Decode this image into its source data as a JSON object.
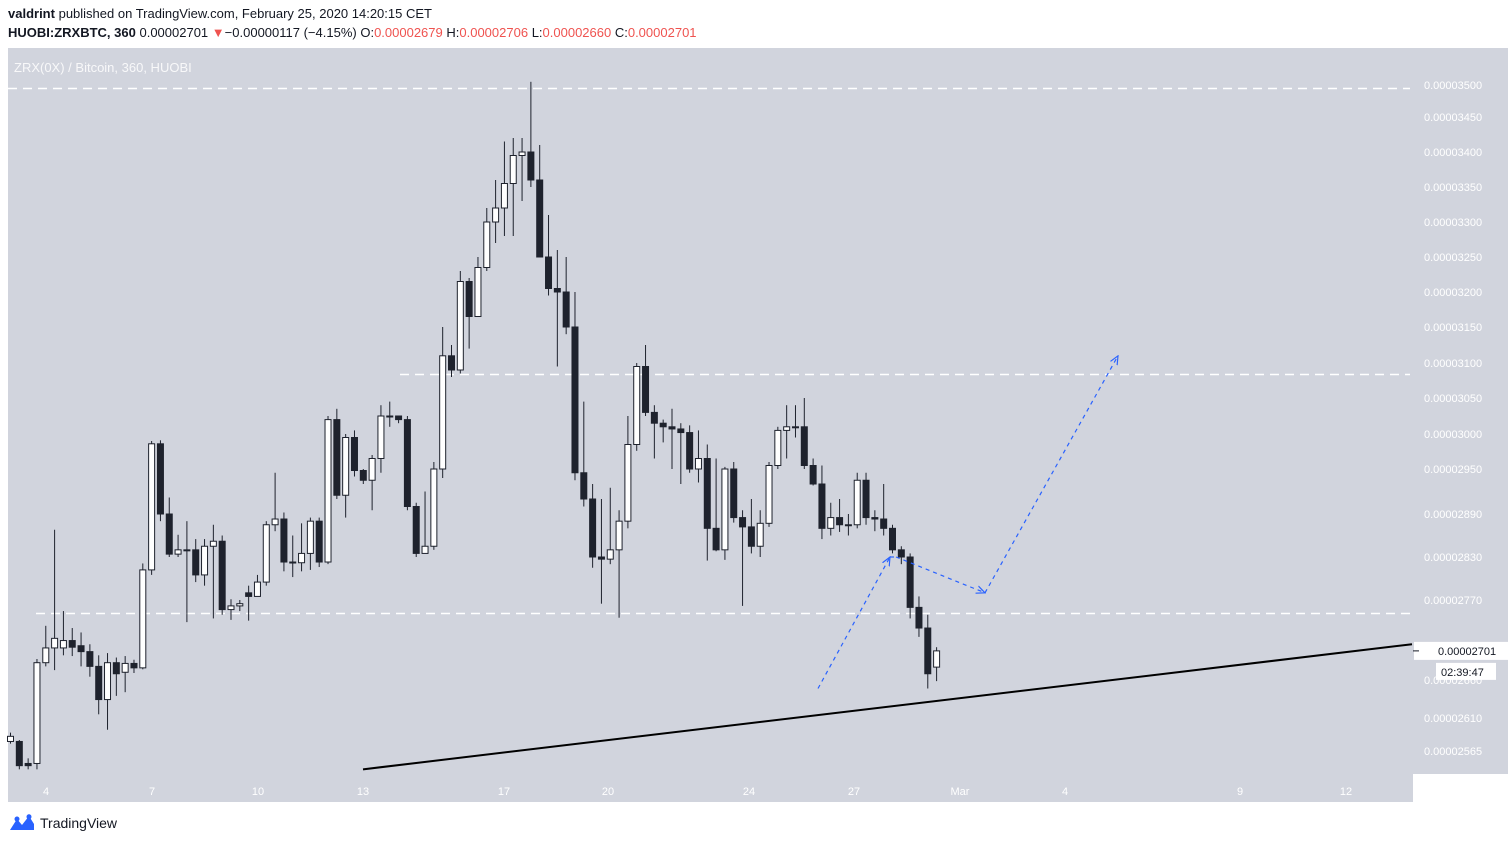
{
  "header": {
    "author": "valdrint",
    "published_text": "published on TradingView.com, February 25, 2020 14:20:15 CET",
    "symbol": "HUOBI:ZRXBTC, 360",
    "last": "0.00002701",
    "arrow": "▼",
    "change": "−0.00000117 (−4.15%)",
    "open_label": "O:",
    "open": "0.00002679",
    "high_label": "H:",
    "high": "0.00002706",
    "low_label": "L:",
    "low": "0.00002660",
    "close_label": "C:",
    "close": "0.00002701"
  },
  "watermark": "ZRX(0X) / Bitcoin, 360, HUOBI",
  "branding": {
    "name": "TradingView",
    "icon": "tradingview-logo-icon"
  },
  "colors": {
    "plot_bg": "#d1d4dd",
    "up_body": "#ffffff",
    "down_body": "#1e222d",
    "wick": "#1e222d",
    "dashed_level": "#ffffff",
    "projection": "#2962ff",
    "trendline": "#000000",
    "axis_text": "#ffffff",
    "price_label_bg": "#ffffff"
  },
  "chart_data": {
    "type": "candlestick",
    "title": "ZRX(0X) / Bitcoin, 360, HUOBI",
    "x_ticks": [
      "4",
      "7",
      "10",
      "13",
      "17",
      "20",
      "24",
      "27",
      "Mar",
      "4",
      "9",
      "12"
    ],
    "y_ticks": [
      "0.00003500",
      "0.00003450",
      "0.00003400",
      "0.00003350",
      "0.00003300",
      "0.00003250",
      "0.00003200",
      "0.00003150",
      "0.00003100",
      "0.00003050",
      "0.00003000",
      "0.00002950",
      "0.00002890",
      "0.00002830",
      "0.00002770",
      "0.00002610",
      "0.00002565"
    ],
    "ylim": [
      2.54e-05,
      3.53e-05
    ],
    "current_price_label": "0.00002701",
    "countdown_label": "02:39:47",
    "hidden_price_label": "0.00002660",
    "candles": [
      [
        2.578e-05,
        2.585e-05,
        2.59e-05,
        2.575e-05
      ],
      [
        2.578e-05,
        2.545e-05,
        2.58e-05,
        2.54e-05
      ],
      [
        2.548e-05,
        2.545e-05,
        2.555e-05,
        2.54e-05
      ],
      [
        2.548e-05,
        2.685e-05,
        2.69e-05,
        2.54e-05
      ],
      [
        2.685e-05,
        2.705e-05,
        2.735e-05,
        2.68e-05
      ],
      [
        2.705e-05,
        2.718e-05,
        2.868e-05,
        2.675e-05
      ],
      [
        2.705e-05,
        2.715e-05,
        2.755e-05,
        2.695e-05
      ],
      [
        2.715e-05,
        2.706e-05,
        2.732e-05,
        2.694e-05
      ],
      [
        2.708e-05,
        2.7e-05,
        2.726e-05,
        2.68e-05
      ],
      [
        2.7e-05,
        2.68e-05,
        2.71e-05,
        2.666e-05
      ],
      [
        2.68e-05,
        2.635e-05,
        2.695e-05,
        2.615e-05
      ],
      [
        2.635e-05,
        2.685e-05,
        2.698e-05,
        2.594e-05
      ],
      [
        2.685e-05,
        2.67e-05,
        2.692e-05,
        2.64e-05
      ],
      [
        2.672e-05,
        2.684e-05,
        2.694e-05,
        2.645e-05
      ],
      [
        2.684e-05,
        2.678e-05,
        2.689e-05,
        2.671e-05
      ],
      [
        2.678e-05,
        2.812e-05,
        2.821e-05,
        2.676e-05
      ],
      [
        2.812e-05,
        2.986e-05,
        2.99e-05,
        2.805e-05
      ],
      [
        2.986e-05,
        2.89e-05,
        2.991e-05,
        2.88e-05
      ],
      [
        2.89e-05,
        2.834e-05,
        2.912e-05,
        2.83e-05
      ],
      [
        2.834e-05,
        2.84e-05,
        2.861e-05,
        2.83e-05
      ],
      [
        2.84e-05,
        2.84e-05,
        2.88e-05,
        2.74e-05
      ],
      [
        2.84e-05,
        2.805e-05,
        2.855e-05,
        2.795e-05
      ],
      [
        2.805e-05,
        2.845e-05,
        2.855e-05,
        2.79e-05
      ],
      [
        2.845e-05,
        2.852e-05,
        2.875e-05,
        2.745e-05
      ],
      [
        2.852e-05,
        2.757e-05,
        2.86e-05,
        2.75e-05
      ],
      [
        2.757e-05,
        2.762e-05,
        2.771e-05,
        2.743e-05
      ],
      [
        2.762e-05,
        2.765e-05,
        2.77e-05,
        2.755e-05
      ],
      [
        2.78e-05,
        2.775e-05,
        2.79e-05,
        2.742e-05
      ],
      [
        2.775e-05,
        2.795e-05,
        2.805e-05,
        2.781e-05
      ],
      [
        2.795e-05,
        2.875e-05,
        2.88e-05,
        2.79e-05
      ],
      [
        2.875e-05,
        2.883e-05,
        2.945e-05,
        2.866e-05
      ],
      [
        2.883e-05,
        2.823e-05,
        2.892e-05,
        2.81e-05
      ],
      [
        2.823e-05,
        2.822e-05,
        2.86e-05,
        2.802e-05
      ],
      [
        2.822e-05,
        2.835e-05,
        2.877e-05,
        2.81e-05
      ],
      [
        2.835e-05,
        2.88e-05,
        2.885e-05,
        2.812e-05
      ],
      [
        2.88e-05,
        2.823e-05,
        2.885e-05,
        2.816e-05
      ],
      [
        2.823e-05,
        3.02e-05,
        3.025e-05,
        2.82e-05
      ],
      [
        3.02e-05,
        2.915e-05,
        3.035e-05,
        2.91e-05
      ],
      [
        2.915e-05,
        2.995e-05,
        3e-05,
        2.885e-05
      ],
      [
        2.995e-05,
        2.948e-05,
        3.005e-05,
        2.94e-05
      ],
      [
        2.948e-05,
        2.935e-05,
        2.95e-05,
        2.93e-05
      ],
      [
        2.935e-05,
        2.965e-05,
        2.97e-05,
        2.895e-05
      ],
      [
        2.965e-05,
        3.025e-05,
        3.04e-05,
        2.945e-05
      ],
      [
        3.025e-05,
        3.025e-05,
        3.045e-05,
        3.01e-05
      ],
      [
        3.025e-05,
        3.02e-05,
        3.025e-05,
        3.015e-05
      ],
      [
        3.02e-05,
        2.9e-05,
        3.025e-05,
        2.895e-05
      ],
      [
        2.9e-05,
        2.835e-05,
        2.905e-05,
        2.83e-05
      ],
      [
        2.835e-05,
        2.845e-05,
        2.92e-05,
        2.84e-05
      ],
      [
        2.845e-05,
        2.95e-05,
        2.96e-05,
        2.84e-05
      ],
      [
        2.95e-05,
        3.11e-05,
        3.15e-05,
        2.938e-05
      ],
      [
        3.11e-05,
        3.09e-05,
        3.125e-05,
        3.08e-05
      ],
      [
        3.09e-05,
        3.215e-05,
        3.23e-05,
        3.085e-05
      ],
      [
        3.215e-05,
        3.165e-05,
        3.22e-05,
        3.12e-05
      ],
      [
        3.165e-05,
        3.235e-05,
        3.25e-05,
        3.165e-05
      ],
      [
        3.235e-05,
        3.3e-05,
        3.32e-05,
        3.23e-05
      ],
      [
        3.3e-05,
        3.32e-05,
        3.36e-05,
        3.27e-05
      ],
      [
        3.32e-05,
        3.355e-05,
        3.415e-05,
        3.28e-05
      ],
      [
        3.355e-05,
        3.395e-05,
        3.42e-05,
        3.28e-05
      ],
      [
        3.395e-05,
        3.4e-05,
        3.42e-05,
        3.33e-05
      ],
      [
        3.4e-05,
        3.36e-05,
        3.505e-05,
        3.35e-05
      ],
      [
        3.36e-05,
        3.25e-05,
        3.41e-05,
        3.26e-05
      ],
      [
        3.25e-05,
        3.205e-05,
        3.31e-05,
        3.195e-05
      ],
      [
        3.205e-05,
        3.2e-05,
        3.26e-05,
        3.095e-05
      ],
      [
        3.2e-05,
        3.15e-05,
        3.25e-05,
        3.14e-05
      ],
      [
        3.15e-05,
        2.945e-05,
        3.2e-05,
        2.935e-05
      ],
      [
        2.945e-05,
        2.91e-05,
        3.045e-05,
        2.9e-05
      ],
      [
        2.91e-05,
        2.83e-05,
        2.93e-05,
        2.815e-05
      ],
      [
        2.83e-05,
        2.827e-05,
        2.91e-05,
        2.765e-05
      ],
      [
        2.827e-05,
        2.84e-05,
        2.925e-05,
        2.82e-05
      ],
      [
        2.84e-05,
        2.88e-05,
        2.895e-05,
        2.746e-05
      ],
      [
        2.88e-05,
        2.985e-05,
        3.025e-05,
        2.87e-05
      ],
      [
        2.985e-05,
        3.095e-05,
        3.1e-05,
        2.976e-05
      ],
      [
        3.095e-05,
        3.03e-05,
        3.125e-05,
        3.025e-05
      ],
      [
        3.03e-05,
        3.015e-05,
        3.04e-05,
        2.965e-05
      ],
      [
        3.015e-05,
        3.01e-05,
        3.02e-05,
        2.988e-05
      ],
      [
        3.01e-05,
        3.007e-05,
        3.035e-05,
        2.95e-05
      ],
      [
        3.007e-05,
        3.002e-05,
        3.015e-05,
        2.93e-05
      ],
      [
        3.002e-05,
        2.95e-05,
        3.012e-05,
        2.945e-05
      ],
      [
        2.95e-05,
        2.965e-05,
        3.005e-05,
        2.932e-05
      ],
      [
        2.965e-05,
        2.87e-05,
        2.985e-05,
        2.825e-05
      ],
      [
        2.87e-05,
        2.84e-05,
        2.965e-05,
        2.838e-05
      ],
      [
        2.84e-05,
        2.95e-05,
        2.953e-05,
        2.826e-05
      ],
      [
        2.95e-05,
        2.885e-05,
        2.96e-05,
        2.878e-05
      ],
      [
        2.885e-05,
        2.872e-05,
        2.895e-05,
        2.762e-05
      ],
      [
        2.872e-05,
        2.845e-05,
        2.91e-05,
        2.835e-05
      ],
      [
        2.845e-05,
        2.877e-05,
        2.895e-05,
        2.83e-05
      ],
      [
        2.877e-05,
        2.955e-05,
        2.96e-05,
        2.872e-05
      ],
      [
        2.955e-05,
        3.005e-05,
        3.01e-05,
        2.95e-05
      ],
      [
        3.005e-05,
        3.01e-05,
        3.04e-05,
        2.965e-05
      ],
      [
        3.01e-05,
        3.01e-05,
        3.04e-05,
        2.995e-05
      ],
      [
        3.01e-05,
        2.955e-05,
        3.05e-05,
        2.95e-05
      ],
      [
        2.955e-05,
        2.93e-05,
        2.965e-05,
        2.928e-05
      ],
      [
        2.93e-05,
        2.87e-05,
        2.955e-05,
        2.855e-05
      ],
      [
        2.87e-05,
        2.885e-05,
        2.905e-05,
        2.86e-05
      ],
      [
        2.885e-05,
        2.875e-05,
        2.91e-05,
        2.865e-05
      ],
      [
        2.875e-05,
        2.875e-05,
        2.89e-05,
        2.86e-05
      ],
      [
        2.875e-05,
        2.935e-05,
        2.945e-05,
        2.87e-05
      ],
      [
        2.935e-05,
        2.885e-05,
        2.945e-05,
        2.875e-05
      ],
      [
        2.885e-05,
        2.883e-05,
        2.895e-05,
        2.866e-05
      ],
      [
        2.883e-05,
        2.87e-05,
        2.93e-05,
        2.86e-05
      ],
      [
        2.87e-05,
        2.84e-05,
        2.875e-05,
        2.835e-05
      ],
      [
        2.84e-05,
        2.83e-05,
        2.845e-05,
        2.82e-05
      ],
      [
        2.83e-05,
        2.76e-05,
        2.835e-05,
        2.745e-05
      ],
      [
        2.76e-05,
        2.732e-05,
        2.775e-05,
        2.72e-05
      ],
      [
        2.732e-05,
        2.67e-05,
        2.75e-05,
        2.65e-05
      ],
      [
        2.679e-05,
        2.701e-05,
        2.706e-05,
        2.66e-05
      ]
    ],
    "levels": [
      3.495e-05,
      3.085e-05,
      2.752e-05
    ],
    "trendline": [
      {
        "x": "13",
        "y": 2.54e-05
      },
      {
        "x": "12",
        "y": 2.71e-05
      }
    ],
    "projection_path": [
      {
        "x": "26",
        "y": 2.65e-05
      },
      {
        "x": "28",
        "y": 2.83e-05
      },
      {
        "x": "29",
        "y": 2.83e-05
      },
      {
        "x": "Mar",
        "y": 2.78e-05
      },
      {
        "x": "6",
        "y": 3.11e-05
      }
    ]
  }
}
